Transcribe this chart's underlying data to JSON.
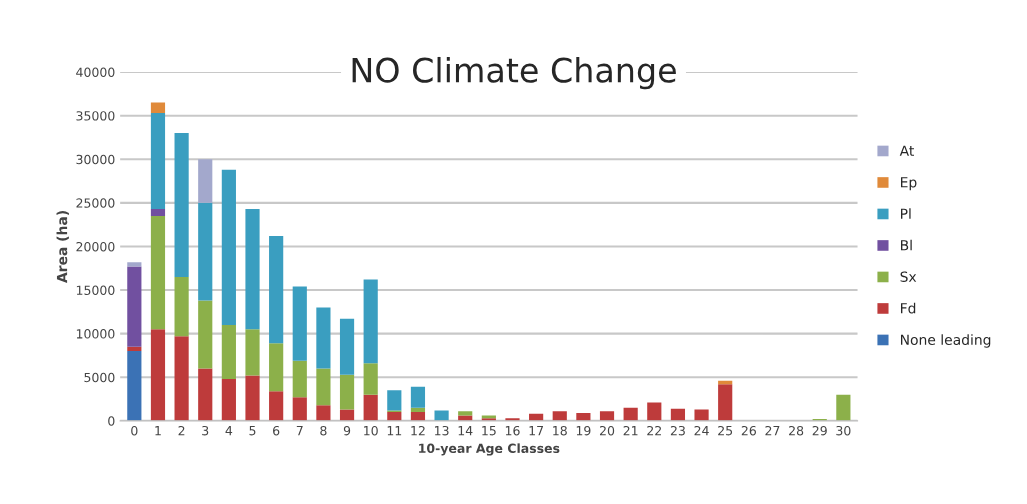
{
  "chart_data": {
    "type": "bar",
    "title": "NO Climate Change",
    "xlabel": "10-year Age Classes",
    "ylabel": "Area (ha)",
    "stacked": true,
    "categories": [
      "0",
      "1",
      "2",
      "3",
      "4",
      "5",
      "6",
      "7",
      "8",
      "9",
      "10",
      "11",
      "12",
      "13",
      "14",
      "15",
      "16",
      "17",
      "18",
      "19",
      "20",
      "21",
      "22",
      "23",
      "24",
      "25",
      "26",
      "27",
      "28",
      "29",
      "30"
    ],
    "series": [
      {
        "name": "None leading",
        "color": "#3b72b5",
        "values": [
          8000,
          0,
          0,
          0,
          0,
          0,
          0,
          0,
          0,
          0,
          0,
          0,
          0,
          0,
          0,
          0,
          0,
          0,
          0,
          0,
          0,
          0,
          0,
          0,
          0,
          0,
          0,
          0,
          0,
          0,
          0
        ]
      },
      {
        "name": "Fd",
        "color": "#be3b3b",
        "values": [
          500,
          10500,
          9700,
          6000,
          4800,
          5200,
          3400,
          2700,
          1800,
          1300,
          3000,
          1000,
          1000,
          0,
          600,
          300,
          300,
          800,
          1100,
          900,
          1100,
          1500,
          2100,
          1400,
          1300,
          4200,
          0,
          0,
          0,
          0,
          0
        ]
      },
      {
        "name": "Sx",
        "color": "#8cb04a",
        "values": [
          0,
          13000,
          6800,
          7800,
          6200,
          5300,
          5500,
          4200,
          4200,
          4000,
          3600,
          200,
          500,
          0,
          500,
          300,
          0,
          0,
          0,
          0,
          0,
          0,
          0,
          0,
          0,
          0,
          0,
          0,
          0,
          200,
          3000
        ]
      },
      {
        "name": "Bl",
        "color": "#7150a0",
        "values": [
          9200,
          800,
          0,
          0,
          0,
          0,
          0,
          0,
          0,
          0,
          0,
          0,
          0,
          0,
          0,
          0,
          0,
          0,
          0,
          0,
          0,
          0,
          0,
          0,
          0,
          0,
          0,
          0,
          0,
          0,
          0
        ]
      },
      {
        "name": "Pl",
        "color": "#3a9ec0",
        "values": [
          0,
          11000,
          16500,
          11200,
          17800,
          13800,
          12300,
          8500,
          7000,
          6400,
          9600,
          2300,
          2400,
          1200,
          0,
          0,
          0,
          0,
          0,
          0,
          0,
          0,
          0,
          0,
          0,
          0,
          0,
          0,
          0,
          0,
          0
        ]
      },
      {
        "name": "Ep",
        "color": "#e08a3a",
        "values": [
          0,
          1200,
          0,
          0,
          0,
          0,
          0,
          0,
          0,
          0,
          0,
          0,
          0,
          0,
          0,
          0,
          0,
          0,
          0,
          0,
          0,
          0,
          0,
          0,
          0,
          400,
          0,
          0,
          0,
          0,
          0
        ]
      },
      {
        "name": "At",
        "color": "#a3a8cc",
        "values": [
          500,
          0,
          0,
          5000,
          0,
          0,
          0,
          0,
          0,
          0,
          0,
          0,
          0,
          0,
          0,
          0,
          0,
          0,
          0,
          0,
          0,
          0,
          0,
          0,
          0,
          0,
          0,
          0,
          0,
          0,
          0
        ]
      }
    ],
    "ylim": [
      0,
      40000
    ],
    "yticks": [
      0,
      5000,
      10000,
      15000,
      20000,
      25000,
      30000,
      35000,
      40000
    ],
    "grid": "y",
    "legend": "right"
  }
}
